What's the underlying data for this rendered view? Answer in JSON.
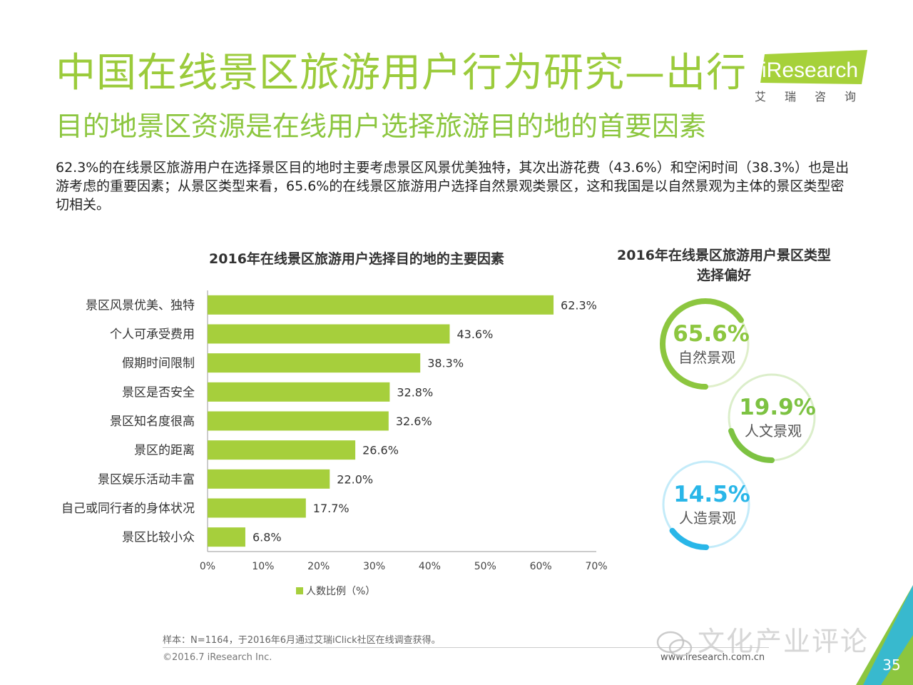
{
  "header": {
    "title": "中国在线景区旅游用户行为研究—出行",
    "subtitle": "目的地景区资源是在线用户选择旅游目的地的首要因素",
    "intro": "62.3%的在线景区旅游用户在选择景区目的地时主要考虑景区风景优美独特，其次出游花费（43.6%）和空闲时间（38.3%）也是出游考虑的重要因素；从景区类型来看，65.6%的在线景区旅游用户选择自然景观类景区，这和我国是以自然景观为主体的景区类型密切相关。"
  },
  "logo": {
    "brand": "iResearch",
    "sub": "艾瑞咨询"
  },
  "chart_data": [
    {
      "type": "bar",
      "orientation": "horizontal",
      "title": "2016年在线景区旅游用户选择目的地的主要因素",
      "categories": [
        "景区风景优美、独特",
        "个人可承受费用",
        "假期时间限制",
        "景区是否安全",
        "景区知名度很高",
        "景区的距离",
        "景区娱乐活动丰富",
        "自己或同行者的身体状况",
        "景区比较小众"
      ],
      "series": [
        {
          "name": "人数比例（%）",
          "values": [
            62.3,
            43.6,
            38.3,
            32.8,
            32.6,
            26.6,
            22.0,
            17.7,
            6.8
          ]
        }
      ],
      "value_labels": [
        "62.3%",
        "43.6%",
        "38.3%",
        "32.8%",
        "32.6%",
        "26.6%",
        "22.0%",
        "17.7%",
        "6.8%"
      ],
      "xlim": [
        0,
        70
      ],
      "xticks": [
        "0%",
        "10%",
        "20%",
        "30%",
        "40%",
        "50%",
        "60%",
        "70%"
      ],
      "grid": false,
      "legend": "bottom",
      "colors": {
        "bar": "#a6cf3c"
      }
    },
    {
      "type": "pie",
      "style": "donut",
      "title": "2016年在线景区旅游用户景区类型选择偏好",
      "slices": [
        {
          "label": "自然景观",
          "value": 65.6,
          "display": "65.6%",
          "color": "#8cc63f"
        },
        {
          "label": "人文景观",
          "value": 19.9,
          "display": "19.9%",
          "color": "#7dc242"
        },
        {
          "label": "人造景观",
          "value": 14.5,
          "display": "14.5%",
          "color": "#29b6e8"
        }
      ]
    }
  ],
  "footer": {
    "note": "样本：N=1164，于2016年6月通过艾瑞iClick社区在线调查获得。",
    "copyright": "©2016.7 iResearch Inc.",
    "website": "www.iresearch.com.cn",
    "watermark": "文化产业评论",
    "page": "35"
  },
  "colors": {
    "title": "#9bcb3b",
    "accent_green": "#8cc63f",
    "accent_blue": "#29b6e8"
  }
}
